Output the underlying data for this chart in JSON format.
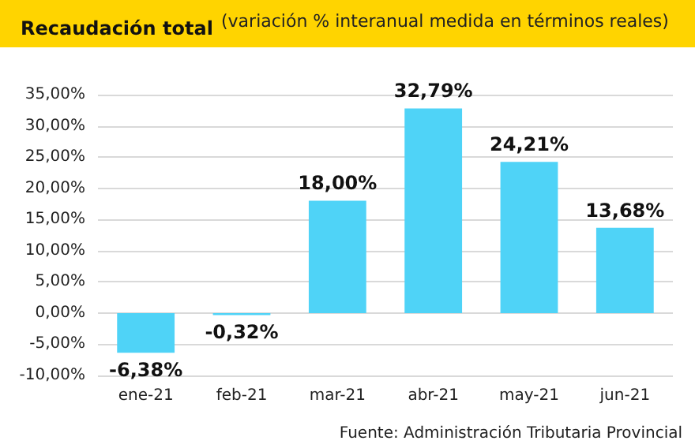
{
  "chart_data": {
    "type": "bar",
    "title": "Recaudación total",
    "subtitle": "(variación % interanual medida en términos reales)",
    "categories": [
      "ene-21",
      "feb-21",
      "mar-21",
      "abr-21",
      "may-21",
      "jun-21"
    ],
    "values": [
      -6.38,
      -0.32,
      18.0,
      32.79,
      24.21,
      13.68
    ],
    "value_labels": [
      "-6,38%",
      "-0,32%",
      "18,00%",
      "32,79%",
      "24,21%",
      "13,68%"
    ],
    "color": "#4fd3f7",
    "ylim": [
      -10,
      35
    ],
    "yticks": [
      {
        "value": -10,
        "label": "-10,00%"
      },
      {
        "value": -5,
        "label": "-5,00%"
      },
      {
        "value": 0,
        "label": "0,00%"
      },
      {
        "value": 5,
        "label": "5,00%"
      },
      {
        "value": 10,
        "label": "10,00%"
      },
      {
        "value": 15,
        "label": "15,00%"
      },
      {
        "value": 20,
        "label": "20,00%"
      },
      {
        "value": 25,
        "label": "25,00%"
      },
      {
        "value": 30,
        "label": "30,00%"
      },
      {
        "value": 35,
        "label": "35,00%"
      }
    ],
    "grid": "y",
    "annotations": [
      "Fuente: Administración Tributaria Provincial"
    ]
  }
}
